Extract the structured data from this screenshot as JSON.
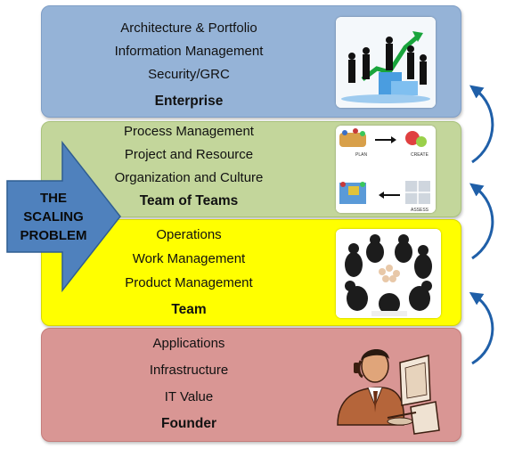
{
  "layers": {
    "enterprise": {
      "items": [
        "Architecture & Portfolio",
        "Information Management",
        "Security/GRC"
      ],
      "title": "Enterprise",
      "color": "#95b3d7"
    },
    "team_of_teams": {
      "items": [
        "Process Management",
        "Project and Resource",
        "Organization and Culture"
      ],
      "title": "Team of Teams",
      "color": "#c3d69b",
      "image_labels": [
        "PLAN",
        "CREATE",
        "ASSESS"
      ]
    },
    "team": {
      "items": [
        "Operations",
        "Work Management",
        "Product Management"
      ],
      "title": "Team",
      "color": "#ffff00"
    },
    "founder": {
      "items": [
        "Applications",
        "Infrastructure",
        "IT Value"
      ],
      "title": "Founder",
      "color": "#d99694"
    }
  },
  "scaling_arrow": {
    "lines": [
      "THE",
      "SCALING",
      "PROBLEM"
    ],
    "color": "#4f81bd"
  },
  "icons": {
    "enterprise_image": "business-people-growth-chart-icon",
    "team_of_teams_image": "plan-create-assess-cycle-icon",
    "team_image": "team-huddle-icon",
    "founder_image": "developer-at-computer-icon",
    "curved_arrows": "curved-up-arrow-icon"
  }
}
